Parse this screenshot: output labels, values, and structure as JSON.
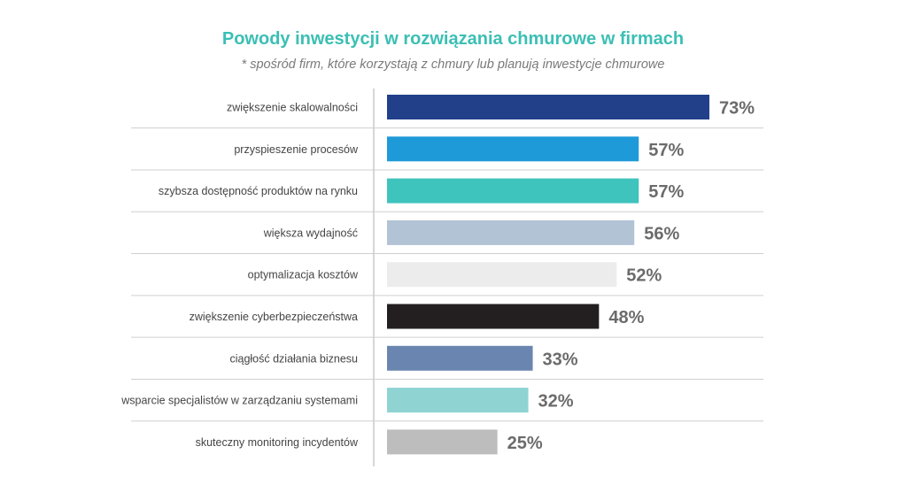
{
  "chart_data": {
    "type": "bar",
    "orientation": "horizontal",
    "title": "Powody inwestycji w rozwiązania chmurowe w firmach",
    "subtitle": "* spośród firm, które korzystają z chmury lub planują inwestycje chmurowe",
    "categories": [
      "zwiększenie skalowalności",
      "przyspieszenie procesów",
      "szybsza dostępność produktów na rynku",
      "większa wydajność",
      "optymalizacja kosztów",
      "zwiększenie cyberbezpieczeństwa",
      "ciągłość działania biznesu",
      "wsparcie specjalistów w zarządzaniu systemami",
      "skuteczny monitoring incydentów"
    ],
    "values": [
      73,
      57,
      57,
      56,
      52,
      48,
      33,
      32,
      25
    ],
    "value_labels": [
      "73%",
      "57%",
      "57%",
      "56%",
      "52%",
      "48%",
      "33%",
      "32%",
      "25%"
    ],
    "colors": [
      "#22408a",
      "#1f9ad8",
      "#3fc3bd",
      "#b3c3d6",
      "#ececec",
      "#231f20",
      "#6a86b0",
      "#8fd3d3",
      "#bdbdbd"
    ],
    "unit": "%",
    "xlim": [
      0,
      73
    ],
    "grid": false,
    "legend": "none",
    "row_separators": true,
    "title_color": "#3bbfb4"
  }
}
